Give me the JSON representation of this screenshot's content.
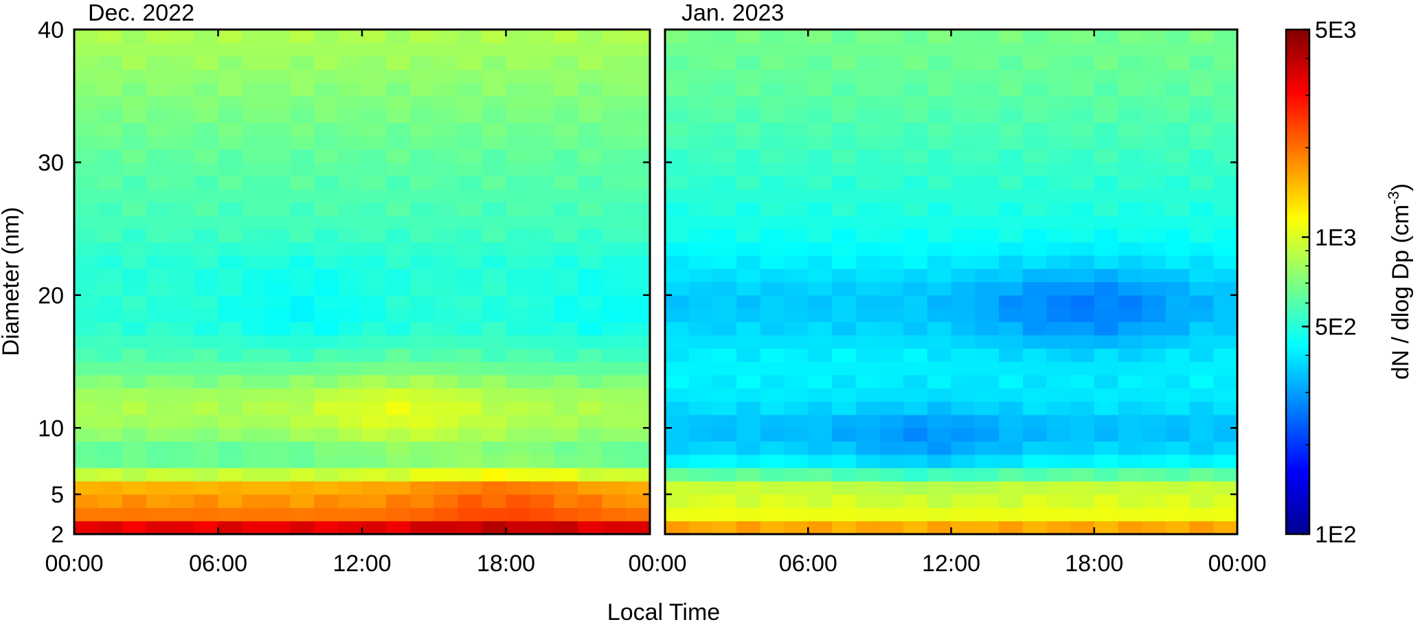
{
  "chart_data": {
    "type": "heatmap",
    "xlabel": "Local Time",
    "ylabel": "Diameter (nm)",
    "colorbar": {
      "label_main": "dN / dlog Dp (cm",
      "label_sup": "-3",
      "label_end": ")",
      "scale": "log",
      "range": [
        100,
        5000
      ],
      "ticks": [
        100,
        500,
        1000,
        5000
      ],
      "tick_labels": [
        "1E2",
        "5E2",
        "1E3",
        "5E3"
      ],
      "colormap": "jet"
    },
    "x_tick_labels": [
      "00:00",
      "06:00",
      "12:00",
      "18:00",
      "00:00"
    ],
    "x_range_hours": [
      0,
      24
    ],
    "y_ticks": [
      2,
      5,
      10,
      20,
      30,
      40
    ],
    "y_tick_labels": [
      "2",
      "5",
      "10",
      "20",
      "30",
      "40"
    ],
    "y_range": [
      2,
      40
    ],
    "grid": false,
    "panels": [
      {
        "title": "Dec. 2022",
        "profile": {
          "diameter_nm": [
            2,
            3,
            4,
            5,
            6,
            7,
            8,
            10,
            12,
            15,
            18,
            20,
            22,
            25,
            30,
            35,
            40
          ],
          "dNdlogDp": [
            4500,
            2500,
            1500,
            2000,
            1200,
            700,
            600,
            800,
            850,
            600,
            500,
            520,
            500,
            560,
            620,
            720,
            850
          ]
        },
        "features": [
          {
            "type": "bump",
            "hour": 13.5,
            "diameter_nm": 11,
            "factor": 1.25
          },
          {
            "type": "bump",
            "hour": 18,
            "diameter_nm": 5,
            "factor": 1.25
          },
          {
            "type": "dip",
            "hour": 9.5,
            "diameter_nm": 19,
            "factor": 0.85
          },
          {
            "type": "dip",
            "hour": 22.5,
            "diameter_nm": 19,
            "factor": 0.88
          }
        ]
      },
      {
        "title": "Jan. 2023",
        "profile": {
          "diameter_nm": [
            2,
            3,
            4,
            5,
            6,
            7,
            8,
            10,
            12,
            15,
            18,
            20,
            22,
            25,
            30,
            35,
            40
          ],
          "dNdlogDp": [
            2000,
            1300,
            900,
            1100,
            800,
            480,
            380,
            330,
            400,
            420,
            360,
            350,
            400,
            470,
            540,
            620,
            680
          ]
        },
        "features": [
          {
            "type": "dip",
            "hour": 11,
            "diameter_nm": 8.5,
            "factor": 0.82
          },
          {
            "type": "dip",
            "hour": 19,
            "diameter_nm": 19,
            "factor": 0.8
          },
          {
            "type": "dip",
            "hour": 15.5,
            "diameter_nm": 19,
            "factor": 0.85
          }
        ]
      }
    ]
  }
}
